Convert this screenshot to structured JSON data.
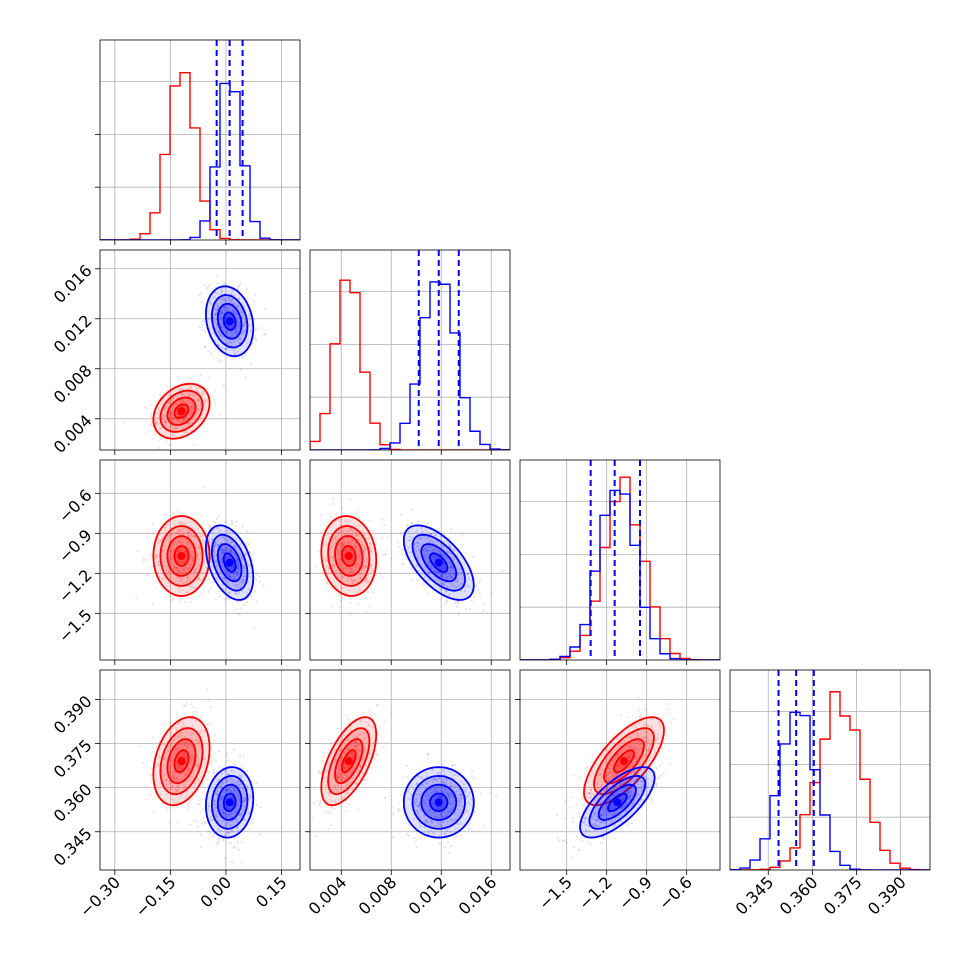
{
  "chart_data": {
    "type": "corner",
    "title": "",
    "parameters": 4,
    "grid": true,
    "colors": {
      "series_a": "#ff0000",
      "series_b": "#0000ff"
    },
    "axes": [
      {
        "range": [
          -0.34,
          0.2
        ],
        "ticks": [
          -0.3,
          -0.15,
          0.0,
          0.15
        ],
        "tick_labels": [
          "−0.30",
          "−0.15",
          "0.00",
          "0.15"
        ]
      },
      {
        "range": [
          0.0015,
          0.0175
        ],
        "ticks": [
          0.004,
          0.008,
          0.012,
          0.016
        ],
        "tick_labels": [
          "0.004",
          "0.008",
          "0.012",
          "0.016"
        ]
      },
      {
        "range": [
          -1.85,
          -0.35
        ],
        "ticks": [
          -1.5,
          -1.2,
          -0.9,
          -0.6
        ],
        "tick_labels": [
          "−1.5",
          "−1.2",
          "−0.9",
          "−0.6"
        ]
      },
      {
        "range": [
          0.332,
          0.4
        ],
        "ticks": [
          0.345,
          0.36,
          0.375,
          0.39
        ],
        "tick_labels": [
          "0.345",
          "0.360",
          "0.375",
          "0.390"
        ]
      }
    ],
    "series": [
      {
        "color": "#ff0000",
        "mean": [
          -0.12,
          0.0046,
          -1.07,
          0.369
        ],
        "std": [
          0.038,
          0.0011,
          0.15,
          0.0075
        ]
      },
      {
        "color": "#0000ff",
        "mean": [
          0.01,
          0.0118,
          -1.12,
          0.355
        ],
        "std": [
          0.032,
          0.0014,
          0.14,
          0.006
        ]
      }
    ],
    "quantiles": [
      {
        "param": 0,
        "values": [
          -0.025,
          0.01,
          0.045
        ]
      },
      {
        "param": 1,
        "values": [
          0.0102,
          0.0118,
          0.0134
        ]
      },
      {
        "param": 2,
        "values": [
          -1.32,
          -1.14,
          -0.95
        ]
      },
      {
        "param": 3,
        "values": [
          0.3485,
          0.3545,
          0.3605
        ]
      }
    ],
    "correlations": [
      {
        "params": [
          0,
          1
        ],
        "series_a": 0.3,
        "series_b": -0.2
      },
      {
        "params": [
          0,
          2
        ],
        "series_a": 0.0,
        "series_b": -0.4
      },
      {
        "params": [
          0,
          3
        ],
        "series_a": 0.3,
        "series_b": 0.1
      },
      {
        "params": [
          1,
          2
        ],
        "series_a": -0.1,
        "series_b": -0.6
      },
      {
        "params": [
          1,
          3
        ],
        "series_a": 0.6,
        "series_b": 0.0
      },
      {
        "params": [
          2,
          3
        ],
        "series_a": 0.7,
        "series_b": 0.7
      }
    ]
  }
}
